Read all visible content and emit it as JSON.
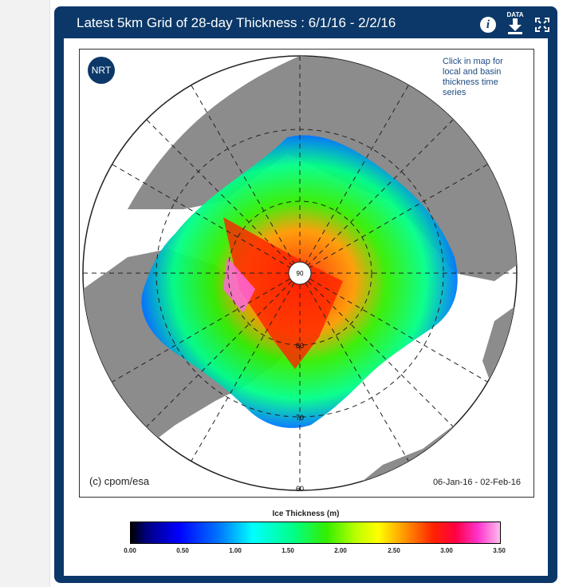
{
  "header": {
    "title": "Latest 5km Grid of 28-day Thickness : 6/1/16 - 2/2/16",
    "data_label": "DATA"
  },
  "map": {
    "badge": "NRT",
    "hint": "Click in map for local and basin thickness time series",
    "copyright": "(c) cpom/esa",
    "date_range": "06-Jan-16 - 02-Feb-16",
    "lat_labels": [
      "80",
      "70",
      "60"
    ],
    "pole_label": "90"
  },
  "colorbar": {
    "title": "Ice Thickness (m)",
    "ticks": [
      "0.00",
      "0.50",
      "1.00",
      "1.50",
      "2.00",
      "2.50",
      "3.00",
      "3.50"
    ]
  },
  "icons": [
    "info-icon",
    "download-icon",
    "fullscreen-icon"
  ],
  "colors": {
    "panel": "#0b3868",
    "land": "#8c8c8c",
    "hint_text": "#1e4b80"
  }
}
